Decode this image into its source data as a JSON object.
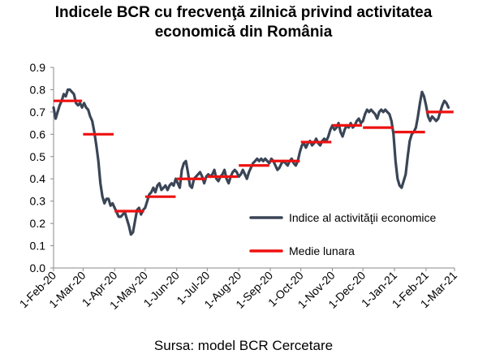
{
  "chart_data": {
    "type": "line",
    "title_lines": [
      "Indicele BCR cu frecvenţă zilnică privind activitatea",
      "economică din România"
    ],
    "ylim": [
      0,
      0.9
    ],
    "yticks": [
      "0.0",
      "0.1",
      "0.2",
      "0.3",
      "0.4",
      "0.5",
      "0.6",
      "0.7",
      "0.8",
      "0.9"
    ],
    "grid": false,
    "x_start": "2020-02-01",
    "x_end": "2021-03-01",
    "xticks": [
      {
        "label": "1-Feb-20",
        "day": 0
      },
      {
        "label": "1-Mar-20",
        "day": 29
      },
      {
        "label": "1-Apr-20",
        "day": 60
      },
      {
        "label": "1-May-20",
        "day": 90
      },
      {
        "label": "1-Jun-20",
        "day": 121
      },
      {
        "label": "1-Jul-20",
        "day": 151
      },
      {
        "label": "1-Aug-20",
        "day": 182
      },
      {
        "label": "1-Sep-20",
        "day": 213
      },
      {
        "label": "1-Oct-20",
        "day": 243
      },
      {
        "label": "1-Nov-20",
        "day": 274
      },
      {
        "label": "1-Dec-20",
        "day": 304
      },
      {
        "label": "1-Jan-21",
        "day": 335
      },
      {
        "label": "1-Feb-21",
        "day": 366
      },
      {
        "label": "1-Mar-21",
        "day": 394
      }
    ],
    "legend_position": "right",
    "series": [
      {
        "name": "Indice al activităţii economice",
        "color": "#3a4556",
        "points": [
          [
            0,
            0.72
          ],
          [
            2,
            0.67
          ],
          [
            4,
            0.7
          ],
          [
            6,
            0.73
          ],
          [
            8,
            0.75
          ],
          [
            10,
            0.78
          ],
          [
            12,
            0.77
          ],
          [
            14,
            0.8
          ],
          [
            16,
            0.8
          ],
          [
            18,
            0.79
          ],
          [
            20,
            0.78
          ],
          [
            22,
            0.74
          ],
          [
            24,
            0.73
          ],
          [
            26,
            0.74
          ],
          [
            28,
            0.72
          ],
          [
            30,
            0.74
          ],
          [
            32,
            0.72
          ],
          [
            34,
            0.71
          ],
          [
            36,
            0.68
          ],
          [
            38,
            0.66
          ],
          [
            40,
            0.61
          ],
          [
            42,
            0.55
          ],
          [
            44,
            0.48
          ],
          [
            46,
            0.38
          ],
          [
            48,
            0.32
          ],
          [
            50,
            0.29
          ],
          [
            52,
            0.31
          ],
          [
            54,
            0.31
          ],
          [
            56,
            0.28
          ],
          [
            58,
            0.29
          ],
          [
            60,
            0.27
          ],
          [
            62,
            0.25
          ],
          [
            64,
            0.23
          ],
          [
            66,
            0.23
          ],
          [
            68,
            0.24
          ],
          [
            70,
            0.25
          ],
          [
            72,
            0.22
          ],
          [
            74,
            0.19
          ],
          [
            76,
            0.15
          ],
          [
            78,
            0.16
          ],
          [
            80,
            0.21
          ],
          [
            82,
            0.26
          ],
          [
            84,
            0.27
          ],
          [
            86,
            0.24
          ],
          [
            88,
            0.26
          ],
          [
            90,
            0.27
          ],
          [
            92,
            0.3
          ],
          [
            94,
            0.33
          ],
          [
            96,
            0.34
          ],
          [
            98,
            0.36
          ],
          [
            100,
            0.34
          ],
          [
            102,
            0.37
          ],
          [
            104,
            0.38
          ],
          [
            106,
            0.35
          ],
          [
            108,
            0.36
          ],
          [
            110,
            0.37
          ],
          [
            112,
            0.35
          ],
          [
            114,
            0.37
          ],
          [
            116,
            0.38
          ],
          [
            118,
            0.37
          ],
          [
            120,
            0.4
          ],
          [
            122,
            0.38
          ],
          [
            124,
            0.36
          ],
          [
            126,
            0.44
          ],
          [
            128,
            0.47
          ],
          [
            130,
            0.48
          ],
          [
            132,
            0.43
          ],
          [
            134,
            0.37
          ],
          [
            136,
            0.36
          ],
          [
            138,
            0.4
          ],
          [
            140,
            0.41
          ],
          [
            142,
            0.42
          ],
          [
            144,
            0.43
          ],
          [
            146,
            0.41
          ],
          [
            148,
            0.38
          ],
          [
            150,
            0.41
          ],
          [
            152,
            0.42
          ],
          [
            154,
            0.41
          ],
          [
            156,
            0.42
          ],
          [
            158,
            0.44
          ],
          [
            160,
            0.4
          ],
          [
            162,
            0.39
          ],
          [
            164,
            0.41
          ],
          [
            166,
            0.42
          ],
          [
            168,
            0.44
          ],
          [
            170,
            0.4
          ],
          [
            172,
            0.38
          ],
          [
            174,
            0.41
          ],
          [
            176,
            0.43
          ],
          [
            178,
            0.44
          ],
          [
            180,
            0.43
          ],
          [
            182,
            0.41
          ],
          [
            184,
            0.42
          ],
          [
            186,
            0.44
          ],
          [
            188,
            0.42
          ],
          [
            190,
            0.4
          ],
          [
            192,
            0.43
          ],
          [
            194,
            0.45
          ],
          [
            196,
            0.47
          ],
          [
            198,
            0.48
          ],
          [
            200,
            0.49
          ],
          [
            202,
            0.48
          ],
          [
            204,
            0.49
          ],
          [
            206,
            0.48
          ],
          [
            208,
            0.49
          ],
          [
            210,
            0.48
          ],
          [
            212,
            0.47
          ],
          [
            214,
            0.49
          ],
          [
            216,
            0.48
          ],
          [
            218,
            0.46
          ],
          [
            220,
            0.44
          ],
          [
            222,
            0.45
          ],
          [
            224,
            0.47
          ],
          [
            226,
            0.48
          ],
          [
            228,
            0.47
          ],
          [
            230,
            0.46
          ],
          [
            232,
            0.48
          ],
          [
            234,
            0.49
          ],
          [
            236,
            0.47
          ],
          [
            238,
            0.46
          ],
          [
            240,
            0.48
          ],
          [
            242,
            0.52
          ],
          [
            244,
            0.55
          ],
          [
            246,
            0.56
          ],
          [
            248,
            0.54
          ],
          [
            250,
            0.56
          ],
          [
            252,
            0.57
          ],
          [
            254,
            0.55
          ],
          [
            256,
            0.56
          ],
          [
            258,
            0.58
          ],
          [
            260,
            0.56
          ],
          [
            262,
            0.55
          ],
          [
            264,
            0.57
          ],
          [
            266,
            0.58
          ],
          [
            268,
            0.57
          ],
          [
            270,
            0.59
          ],
          [
            272,
            0.62
          ],
          [
            274,
            0.64
          ],
          [
            276,
            0.62
          ],
          [
            278,
            0.63
          ],
          [
            280,
            0.65
          ],
          [
            282,
            0.61
          ],
          [
            284,
            0.59
          ],
          [
            286,
            0.62
          ],
          [
            288,
            0.64
          ],
          [
            290,
            0.63
          ],
          [
            292,
            0.65
          ],
          [
            294,
            0.63
          ],
          [
            296,
            0.64
          ],
          [
            298,
            0.66
          ],
          [
            300,
            0.67
          ],
          [
            302,
            0.65
          ],
          [
            304,
            0.66
          ],
          [
            306,
            0.69
          ],
          [
            308,
            0.71
          ],
          [
            310,
            0.7
          ],
          [
            312,
            0.71
          ],
          [
            314,
            0.7
          ],
          [
            316,
            0.69
          ],
          [
            318,
            0.67
          ],
          [
            320,
            0.7
          ],
          [
            322,
            0.71
          ],
          [
            324,
            0.7
          ],
          [
            326,
            0.71
          ],
          [
            328,
            0.7
          ],
          [
            330,
            0.69
          ],
          [
            332,
            0.66
          ],
          [
            334,
            0.6
          ],
          [
            336,
            0.48
          ],
          [
            338,
            0.4
          ],
          [
            340,
            0.37
          ],
          [
            342,
            0.36
          ],
          [
            344,
            0.39
          ],
          [
            346,
            0.42
          ],
          [
            348,
            0.5
          ],
          [
            350,
            0.57
          ],
          [
            352,
            0.6
          ],
          [
            354,
            0.61
          ],
          [
            356,
            0.63
          ],
          [
            358,
            0.68
          ],
          [
            360,
            0.74
          ],
          [
            362,
            0.79
          ],
          [
            364,
            0.77
          ],
          [
            366,
            0.73
          ],
          [
            368,
            0.68
          ],
          [
            370,
            0.66
          ],
          [
            372,
            0.68
          ],
          [
            374,
            0.67
          ],
          [
            376,
            0.66
          ],
          [
            378,
            0.67
          ],
          [
            380,
            0.7
          ],
          [
            382,
            0.73
          ],
          [
            384,
            0.75
          ],
          [
            386,
            0.74
          ],
          [
            388,
            0.72
          ]
        ]
      },
      {
        "name": "Medie lunara",
        "color": "#ee1111",
        "segments": [
          [
            0,
            28,
            0.75
          ],
          [
            29,
            59,
            0.6
          ],
          [
            60,
            89,
            0.255
          ],
          [
            90,
            120,
            0.32
          ],
          [
            121,
            150,
            0.4
          ],
          [
            151,
            181,
            0.41
          ],
          [
            182,
            212,
            0.46
          ],
          [
            213,
            242,
            0.48
          ],
          [
            243,
            273,
            0.565
          ],
          [
            274,
            303,
            0.64
          ],
          [
            304,
            334,
            0.63
          ],
          [
            335,
            365,
            0.61
          ],
          [
            366,
            393,
            0.7
          ]
        ]
      }
    ],
    "source": "Sursa: model BCR Cercetare"
  }
}
